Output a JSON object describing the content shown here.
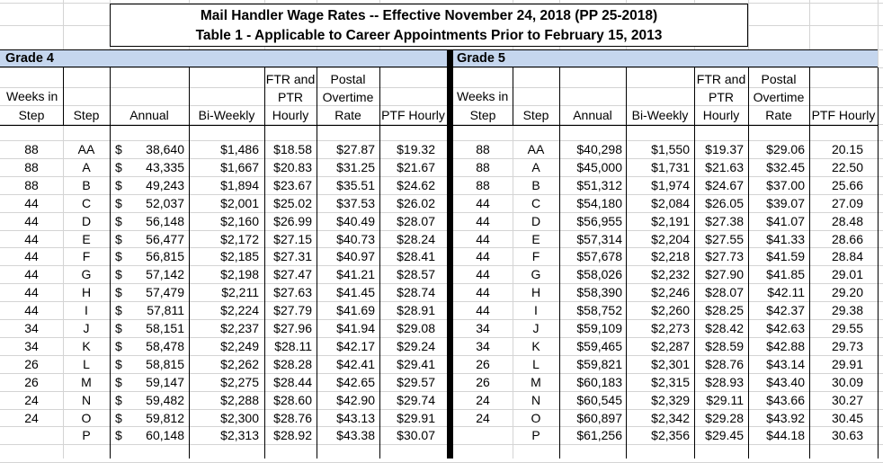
{
  "title": {
    "line1": "Mail Handler Wage Rates -- Effective November 24, 2018 (PP 25-2018)",
    "line2": "Table 1 - Applicable to Career Appointments Prior to February 15, 2013"
  },
  "grade4": {
    "label": "Grade 4",
    "headers": {
      "weeks": [
        "Weeks in",
        "Step"
      ],
      "step": "Step",
      "annual": "Annual",
      "biweekly": "Bi-Weekly",
      "ftr": [
        "FTR and",
        "PTR",
        "Hourly"
      ],
      "overtime": [
        "Postal",
        "Overtime",
        "Rate"
      ],
      "ptf": "PTF Hourly"
    },
    "rows": [
      {
        "weeks": "88",
        "step": "AA",
        "dollar": "$",
        "annual": "38,640",
        "biweekly": "$1,486",
        "ftr": "$18.58",
        "ot": "$27.87",
        "ptf": "$19.32"
      },
      {
        "weeks": "88",
        "step": "A",
        "dollar": "$",
        "annual": "43,335",
        "biweekly": "$1,667",
        "ftr": "$20.83",
        "ot": "$31.25",
        "ptf": "$21.67"
      },
      {
        "weeks": "88",
        "step": "B",
        "dollar": "$",
        "annual": "49,243",
        "biweekly": "$1,894",
        "ftr": "$23.67",
        "ot": "$35.51",
        "ptf": "$24.62"
      },
      {
        "weeks": "44",
        "step": "C",
        "dollar": "$",
        "annual": "52,037",
        "biweekly": "$2,001",
        "ftr": "$25.02",
        "ot": "$37.53",
        "ptf": "$26.02"
      },
      {
        "weeks": "44",
        "step": "D",
        "dollar": "$",
        "annual": "56,148",
        "biweekly": "$2,160",
        "ftr": "$26.99",
        "ot": "$40.49",
        "ptf": "$28.07"
      },
      {
        "weeks": "44",
        "step": "E",
        "dollar": "$",
        "annual": "56,477",
        "biweekly": "$2,172",
        "ftr": "$27.15",
        "ot": "$40.73",
        "ptf": "$28.24"
      },
      {
        "weeks": "44",
        "step": "F",
        "dollar": "$",
        "annual": "56,815",
        "biweekly": "$2,185",
        "ftr": "$27.31",
        "ot": "$40.97",
        "ptf": "$28.41"
      },
      {
        "weeks": "44",
        "step": "G",
        "dollar": "$",
        "annual": "57,142",
        "biweekly": "$2,198",
        "ftr": "$27.47",
        "ot": "$41.21",
        "ptf": "$28.57"
      },
      {
        "weeks": "44",
        "step": "H",
        "dollar": "$",
        "annual": "57,479",
        "biweekly": "$2,211",
        "ftr": "$27.63",
        "ot": "$41.45",
        "ptf": "$28.74"
      },
      {
        "weeks": "44",
        "step": "I",
        "dollar": "$",
        "annual": "57,811",
        "biweekly": "$2,224",
        "ftr": "$27.79",
        "ot": "$41.69",
        "ptf": "$28.91"
      },
      {
        "weeks": "34",
        "step": "J",
        "dollar": "$",
        "annual": "58,151",
        "biweekly": "$2,237",
        "ftr": "$27.96",
        "ot": "$41.94",
        "ptf": "$29.08"
      },
      {
        "weeks": "34",
        "step": "K",
        "dollar": "$",
        "annual": "58,478",
        "biweekly": "$2,249",
        "ftr": "$28.11",
        "ot": "$42.17",
        "ptf": "$29.24"
      },
      {
        "weeks": "26",
        "step": "L",
        "dollar": "$",
        "annual": "58,815",
        "biweekly": "$2,262",
        "ftr": "$28.28",
        "ot": "$42.41",
        "ptf": "$29.41"
      },
      {
        "weeks": "26",
        "step": "M",
        "dollar": "$",
        "annual": "59,147",
        "biweekly": "$2,275",
        "ftr": "$28.44",
        "ot": "$42.65",
        "ptf": "$29.57"
      },
      {
        "weeks": "24",
        "step": "N",
        "dollar": "$",
        "annual": "59,482",
        "biweekly": "$2,288",
        "ftr": "$28.60",
        "ot": "$42.90",
        "ptf": "$29.74"
      },
      {
        "weeks": "24",
        "step": "O",
        "dollar": "$",
        "annual": "59,812",
        "biweekly": "$2,300",
        "ftr": "$28.76",
        "ot": "$43.13",
        "ptf": "$29.91"
      },
      {
        "weeks": "",
        "step": "P",
        "dollar": "$",
        "annual": "60,148",
        "biweekly": "$2,313",
        "ftr": "$28.92",
        "ot": "$43.38",
        "ptf": "$30.07"
      }
    ]
  },
  "grade5": {
    "label": "Grade 5",
    "headers": {
      "weeks": [
        "Weeks in",
        "Step"
      ],
      "step": "Step",
      "annual": "Annual",
      "biweekly": "Bi-Weekly",
      "ftr": [
        "FTR and",
        "PTR",
        "Hourly"
      ],
      "overtime": [
        "Postal",
        "Overtime",
        "Rate"
      ],
      "ptf": "PTF Hourly"
    },
    "rows": [
      {
        "weeks": "88",
        "step": "AA",
        "annual": "$40,298",
        "biweekly": "$1,550",
        "ftr": "$19.37",
        "ot": "$29.06",
        "ptf": "20.15"
      },
      {
        "weeks": "88",
        "step": "A",
        "annual": "$45,000",
        "biweekly": "$1,731",
        "ftr": "$21.63",
        "ot": "$32.45",
        "ptf": "22.50"
      },
      {
        "weeks": "88",
        "step": "B",
        "annual": "$51,312",
        "biweekly": "$1,974",
        "ftr": "$24.67",
        "ot": "$37.00",
        "ptf": "25.66"
      },
      {
        "weeks": "44",
        "step": "C",
        "annual": "$54,180",
        "biweekly": "$2,084",
        "ftr": "$26.05",
        "ot": "$39.07",
        "ptf": "27.09"
      },
      {
        "weeks": "44",
        "step": "D",
        "annual": "$56,955",
        "biweekly": "$2,191",
        "ftr": "$27.38",
        "ot": "$41.07",
        "ptf": "28.48"
      },
      {
        "weeks": "44",
        "step": "E",
        "annual": "$57,314",
        "biweekly": "$2,204",
        "ftr": "$27.55",
        "ot": "$41.33",
        "ptf": "28.66"
      },
      {
        "weeks": "44",
        "step": "F",
        "annual": "$57,678",
        "biweekly": "$2,218",
        "ftr": "$27.73",
        "ot": "$41.59",
        "ptf": "28.84"
      },
      {
        "weeks": "44",
        "step": "G",
        "annual": "$58,026",
        "biweekly": "$2,232",
        "ftr": "$27.90",
        "ot": "$41.85",
        "ptf": "29.01"
      },
      {
        "weeks": "44",
        "step": "H",
        "annual": "$58,390",
        "biweekly": "$2,246",
        "ftr": "$28.07",
        "ot": "$42.11",
        "ptf": "29.20"
      },
      {
        "weeks": "44",
        "step": "I",
        "annual": "$58,752",
        "biweekly": "$2,260",
        "ftr": "$28.25",
        "ot": "$42.37",
        "ptf": "29.38"
      },
      {
        "weeks": "34",
        "step": "J",
        "annual": "$59,109",
        "biweekly": "$2,273",
        "ftr": "$28.42",
        "ot": "$42.63",
        "ptf": "29.55"
      },
      {
        "weeks": "34",
        "step": "K",
        "annual": "$59,465",
        "biweekly": "$2,287",
        "ftr": "$28.59",
        "ot": "$42.88",
        "ptf": "29.73"
      },
      {
        "weeks": "26",
        "step": "L",
        "annual": "$59,821",
        "biweekly": "$2,301",
        "ftr": "$28.76",
        "ot": "$43.14",
        "ptf": "29.91"
      },
      {
        "weeks": "26",
        "step": "M",
        "annual": "$60,183",
        "biweekly": "$2,315",
        "ftr": "$28.93",
        "ot": "$43.40",
        "ptf": "30.09"
      },
      {
        "weeks": "24",
        "step": "N",
        "annual": "$60,545",
        "biweekly": "$2,329",
        "ftr": "$29.11",
        "ot": "$43.66",
        "ptf": "30.27"
      },
      {
        "weeks": "24",
        "step": "O",
        "annual": "$60,897",
        "biweekly": "$2,342",
        "ftr": "$29.28",
        "ot": "$43.92",
        "ptf": "30.45"
      },
      {
        "weeks": "",
        "step": "P",
        "annual": "$61,256",
        "biweekly": "$2,356",
        "ftr": "$29.45",
        "ot": "$44.18",
        "ptf": "30.63"
      }
    ]
  }
}
